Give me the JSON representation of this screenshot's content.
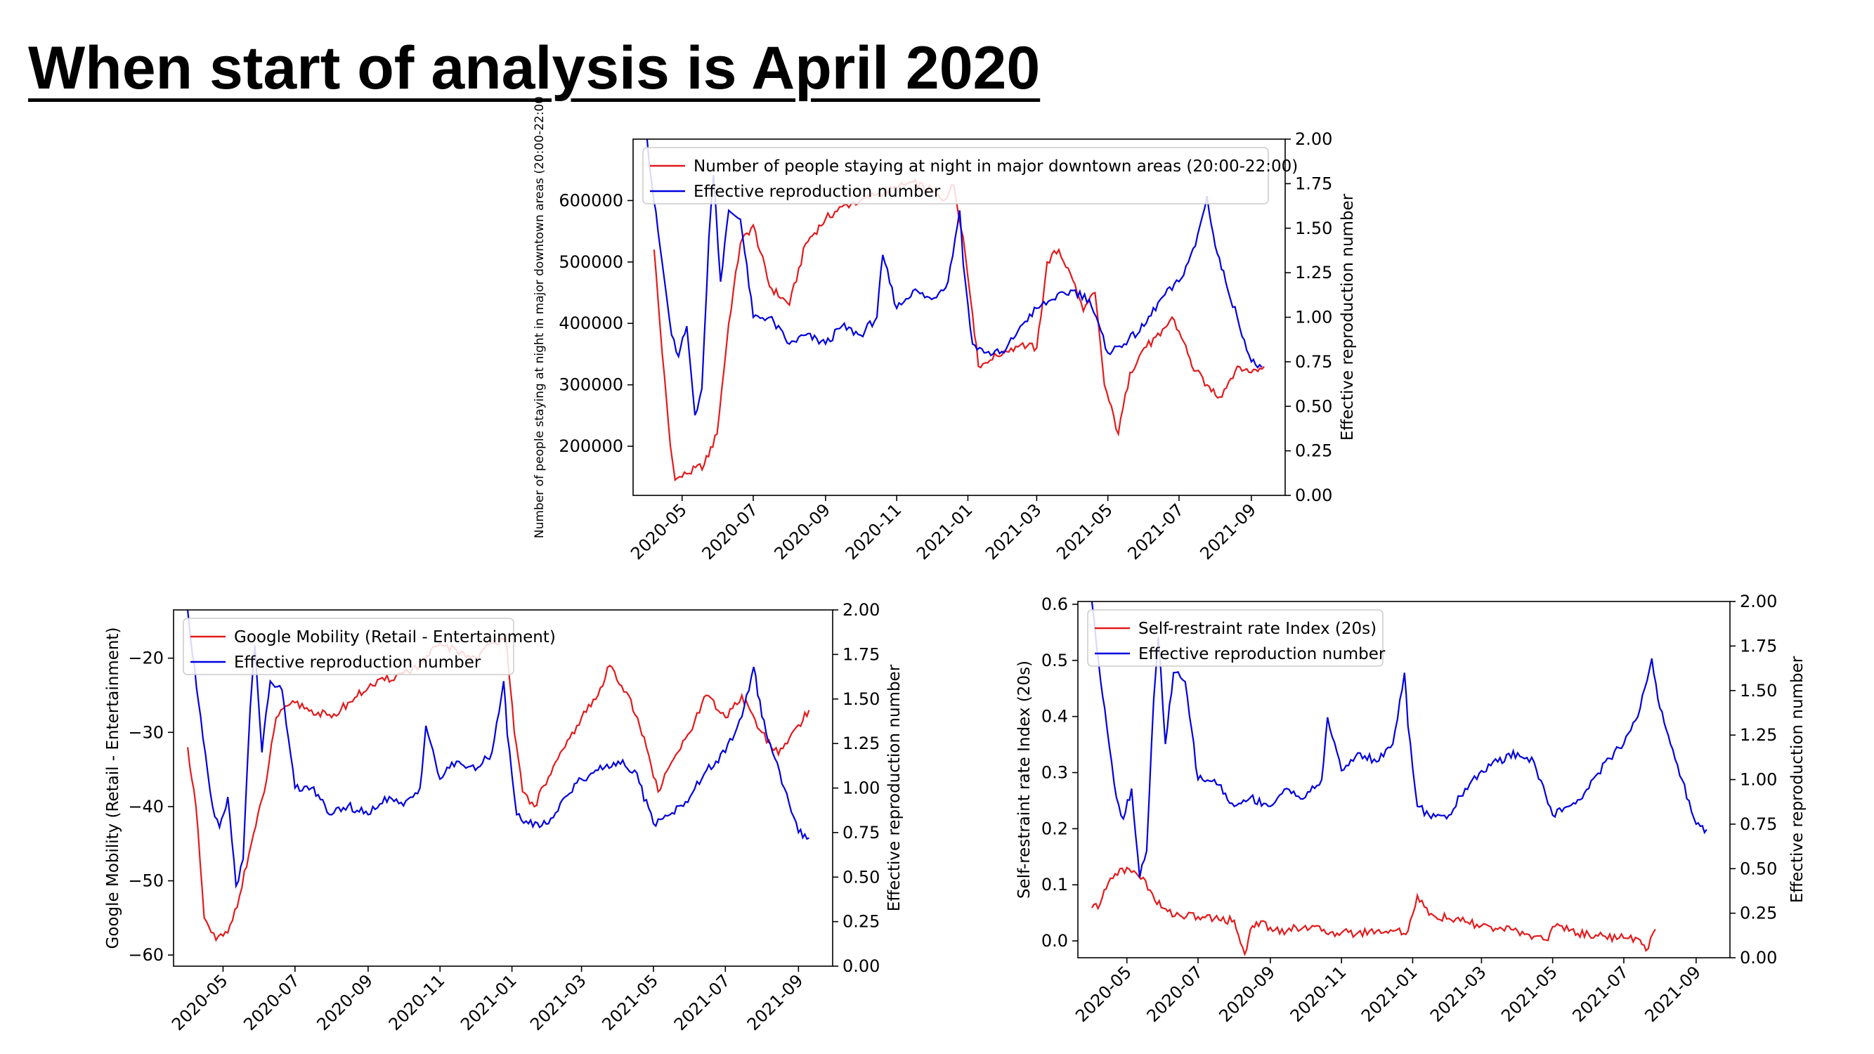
{
  "page": {
    "title": "When start of analysis is April 2020"
  },
  "charts": [
    {
      "id": "top",
      "type": "line",
      "x_ticks": [
        "2020-05",
        "2020-07",
        "2020-09",
        "2020-11",
        "2021-01",
        "2021-03",
        "2021-05",
        "2021-07",
        "2021-09"
      ],
      "x_range": [
        "2020-03-20",
        "2021-09-30"
      ],
      "left_axis": {
        "label": "Number of people staying at night in major downtown areas (20:00-22:00",
        "ticks": [
          200000,
          300000,
          400000,
          500000,
          600000
        ],
        "ylim": [
          120000,
          700000
        ]
      },
      "right_axis": {
        "label": "Effective reproduction number",
        "ticks": [
          "0.00",
          "0.25",
          "0.50",
          "0.75",
          "1.00",
          "1.25",
          "1.50",
          "1.75",
          "2.00"
        ],
        "ylim": [
          0,
          2.0
        ]
      },
      "legend": {
        "placement": "top-left",
        "entries": [
          "Number of people staying at night in major downtown areas (20:00-22:00)",
          "Effective reproduction number"
        ]
      },
      "series": [
        {
          "name": "Number of people staying at night in major downtown areas (20:00-22:00)",
          "axis": "left",
          "color": "#e31a1c",
          "x": [
            "2020-04-07",
            "2020-04-14",
            "2020-04-21",
            "2020-04-25",
            "2020-05-05",
            "2020-05-20",
            "2020-05-31",
            "2020-06-10",
            "2020-06-20",
            "2020-07-01",
            "2020-07-15",
            "2020-08-01",
            "2020-08-15",
            "2020-09-01",
            "2020-09-15",
            "2020-10-01",
            "2020-10-15",
            "2020-11-01",
            "2020-11-15",
            "2020-12-01",
            "2020-12-10",
            "2020-12-20",
            "2020-12-28",
            "2021-01-05",
            "2021-01-10",
            "2021-01-20",
            "2021-02-01",
            "2021-02-15",
            "2021-03-01",
            "2021-03-10",
            "2021-03-20",
            "2021-04-01",
            "2021-04-10",
            "2021-04-20",
            "2021-04-28",
            "2021-05-10",
            "2021-05-20",
            "2021-06-01",
            "2021-06-15",
            "2021-06-25",
            "2021-07-05",
            "2021-07-12",
            "2021-07-25",
            "2021-08-05",
            "2021-08-20",
            "2021-09-01",
            "2021-09-12"
          ],
          "y": [
            520000,
            350000,
            200000,
            145000,
            155000,
            170000,
            220000,
            400000,
            530000,
            560000,
            460000,
            430000,
            530000,
            570000,
            590000,
            600000,
            610000,
            620000,
            630000,
            615000,
            600000,
            625000,
            540000,
            415000,
            330000,
            340000,
            355000,
            365000,
            360000,
            500000,
            520000,
            470000,
            420000,
            450000,
            300000,
            220000,
            320000,
            360000,
            380000,
            410000,
            370000,
            330000,
            300000,
            280000,
            330000,
            320000,
            330000
          ]
        },
        {
          "name": "Effective reproduction number",
          "axis": "right",
          "color": "#0000e0",
          "x": [
            "2020-04-01",
            "2020-04-05",
            "2020-04-12",
            "2020-04-22",
            "2020-04-28",
            "2020-05-05",
            "2020-05-12",
            "2020-05-18",
            "2020-05-24",
            "2020-05-28",
            "2020-06-03",
            "2020-06-10",
            "2020-06-20",
            "2020-07-01",
            "2020-07-15",
            "2020-08-01",
            "2020-08-15",
            "2020-09-01",
            "2020-09-15",
            "2020-10-01",
            "2020-10-15",
            "2020-10-20",
            "2020-11-01",
            "2020-11-15",
            "2020-12-01",
            "2020-12-15",
            "2020-12-25",
            "2020-12-28",
            "2021-01-05",
            "2021-01-15",
            "2021-02-01",
            "2021-02-15",
            "2021-03-01",
            "2021-03-15",
            "2021-04-01",
            "2021-04-15",
            "2021-05-01",
            "2021-05-15",
            "2021-06-01",
            "2021-06-15",
            "2021-07-01",
            "2021-07-15",
            "2021-07-25",
            "2021-08-01",
            "2021-08-10",
            "2021-08-20",
            "2021-09-01",
            "2021-09-10"
          ],
          "y": [
            2.0,
            1.75,
            1.4,
            0.9,
            0.78,
            0.95,
            0.45,
            0.6,
            1.45,
            1.8,
            1.2,
            1.6,
            1.55,
            1.0,
            1.0,
            0.85,
            0.9,
            0.85,
            0.95,
            0.9,
            1.0,
            1.35,
            1.05,
            1.15,
            1.1,
            1.2,
            1.6,
            1.3,
            0.85,
            0.8,
            0.8,
            0.95,
            1.05,
            1.1,
            1.15,
            1.1,
            0.8,
            0.85,
            0.95,
            1.1,
            1.2,
            1.4,
            1.68,
            1.4,
            1.2,
            1.0,
            0.75,
            0.72
          ]
        }
      ]
    },
    {
      "id": "bottom-left",
      "type": "line",
      "x_ticks": [
        "2020-05",
        "2020-07",
        "2020-09",
        "2020-11",
        "2021-01",
        "2021-03",
        "2021-05",
        "2021-07",
        "2021-09"
      ],
      "x_range": [
        "2020-03-20",
        "2021-09-30"
      ],
      "left_axis": {
        "label": "Google Mobility (Retail - Entertainment)",
        "ticks": [
          "−60",
          "−50",
          "−40",
          "−30",
          "−20"
        ],
        "ylim": [
          -61.5,
          -13.5
        ]
      },
      "right_axis": {
        "label": "Effective reproduction number",
        "ticks": [
          "0.00",
          "0.25",
          "0.50",
          "0.75",
          "1.00",
          "1.25",
          "1.50",
          "1.75",
          "2.00"
        ],
        "ylim": [
          0,
          2.0
        ]
      },
      "legend": {
        "placement": "top-left",
        "entries": [
          "Google Mobility (Retail - Entertainment)",
          "Effective reproduction number"
        ]
      },
      "series": [
        {
          "name": "Google Mobility (Retail - Entertainment)",
          "axis": "left",
          "color": "#e31a1c",
          "x": [
            "2020-04-01",
            "2020-04-08",
            "2020-04-15",
            "2020-04-25",
            "2020-05-05",
            "2020-05-15",
            "2020-05-25",
            "2020-06-05",
            "2020-06-15",
            "2020-07-01",
            "2020-07-15",
            "2020-08-01",
            "2020-08-15",
            "2020-09-01",
            "2020-09-15",
            "2020-10-01",
            "2020-10-15",
            "2020-11-01",
            "2020-11-15",
            "2020-12-01",
            "2020-12-15",
            "2020-12-27",
            "2021-01-03",
            "2021-01-10",
            "2021-01-20",
            "2021-02-01",
            "2021-02-15",
            "2021-03-01",
            "2021-03-15",
            "2021-03-25",
            "2021-04-10",
            "2021-04-25",
            "2021-05-05",
            "2021-05-20",
            "2021-06-01",
            "2021-06-15",
            "2021-07-01",
            "2021-07-15",
            "2021-08-01",
            "2021-08-15",
            "2021-09-01",
            "2021-09-10"
          ],
          "y": [
            -32,
            -40,
            -55,
            -58,
            -57,
            -52,
            -45,
            -38,
            -28,
            -26,
            -27,
            -28,
            -26,
            -24,
            -23,
            -22,
            -21,
            -18,
            -19,
            -20,
            -18,
            -17,
            -30,
            -38,
            -40,
            -36,
            -32,
            -28,
            -25,
            -21,
            -25,
            -32,
            -38,
            -33,
            -30,
            -25,
            -28,
            -25,
            -30,
            -33,
            -29,
            -27
          ]
        },
        {
          "name": "Effective reproduction number",
          "axis": "right",
          "color": "#0000e0",
          "x": [
            "2020-04-01",
            "2020-04-05",
            "2020-04-12",
            "2020-04-22",
            "2020-04-28",
            "2020-05-05",
            "2020-05-12",
            "2020-05-18",
            "2020-05-24",
            "2020-05-28",
            "2020-06-03",
            "2020-06-10",
            "2020-06-20",
            "2020-07-01",
            "2020-07-15",
            "2020-08-01",
            "2020-08-15",
            "2020-09-01",
            "2020-09-15",
            "2020-10-01",
            "2020-10-15",
            "2020-10-20",
            "2020-11-01",
            "2020-11-15",
            "2020-12-01",
            "2020-12-15",
            "2020-12-25",
            "2020-12-28",
            "2021-01-05",
            "2021-01-15",
            "2021-02-01",
            "2021-02-15",
            "2021-03-01",
            "2021-03-15",
            "2021-04-01",
            "2021-04-15",
            "2021-05-01",
            "2021-05-15",
            "2021-06-01",
            "2021-06-15",
            "2021-07-01",
            "2021-07-15",
            "2021-07-25",
            "2021-08-01",
            "2021-08-10",
            "2021-08-20",
            "2021-09-01",
            "2021-09-10"
          ],
          "y": [
            2.0,
            1.75,
            1.4,
            0.9,
            0.78,
            0.95,
            0.45,
            0.6,
            1.45,
            1.8,
            1.2,
            1.6,
            1.55,
            1.0,
            1.0,
            0.85,
            0.9,
            0.85,
            0.95,
            0.9,
            1.0,
            1.35,
            1.05,
            1.15,
            1.1,
            1.2,
            1.6,
            1.3,
            0.85,
            0.8,
            0.8,
            0.95,
            1.05,
            1.1,
            1.15,
            1.1,
            0.8,
            0.85,
            0.95,
            1.1,
            1.2,
            1.4,
            1.68,
            1.4,
            1.2,
            1.0,
            0.75,
            0.72
          ]
        }
      ]
    },
    {
      "id": "bottom-right",
      "type": "line",
      "x_ticks": [
        "2020-05",
        "2020-07",
        "2020-09",
        "2020-11",
        "2021-01",
        "2021-03",
        "2021-05",
        "2021-07",
        "2021-09"
      ],
      "x_range": [
        "2020-03-20",
        "2021-09-30"
      ],
      "left_axis": {
        "label": "Self-restraint rate Index (20s)",
        "ticks": [
          "0.0",
          "0.1",
          "0.2",
          "0.3",
          "0.4",
          "0.5",
          "0.6"
        ],
        "ylim": [
          -0.03,
          0.605
        ]
      },
      "right_axis": {
        "label": "Effective reproduction number",
        "ticks": [
          "0.00",
          "0.25",
          "0.50",
          "0.75",
          "1.00",
          "1.25",
          "1.50",
          "1.75",
          "2.00"
        ],
        "ylim": [
          0,
          2.0
        ]
      },
      "legend": {
        "placement": "top-left",
        "entries": [
          "Self-restraint rate Index (20s)",
          "Effective reproduction number"
        ]
      },
      "series": [
        {
          "name": "Self-restraint rate Index (20s)",
          "axis": "right",
          "color": "#e31a1c",
          "x": [
            "2020-04-01",
            "2020-04-08",
            "2020-04-15",
            "2020-04-25",
            "2020-05-05",
            "2020-05-15",
            "2020-05-25",
            "2020-06-05",
            "2020-06-15",
            "2020-07-01",
            "2020-07-15",
            "2020-08-01",
            "2020-08-10",
            "2020-08-15",
            "2020-08-20",
            "2020-09-01",
            "2020-09-15",
            "2020-10-01",
            "2020-10-15",
            "2020-11-01",
            "2020-11-15",
            "2020-12-01",
            "2020-12-15",
            "2020-12-28",
            "2021-01-05",
            "2021-01-15",
            "2021-02-01",
            "2021-02-15",
            "2021-03-01",
            "2021-03-15",
            "2021-04-01",
            "2021-04-15",
            "2021-04-25",
            "2021-05-05",
            "2021-05-15",
            "2021-06-01",
            "2021-06-15",
            "2021-07-01",
            "2021-07-15",
            "2021-07-20",
            "2021-07-28"
          ],
          "y": [
            0.28,
            0.3,
            0.42,
            0.5,
            0.48,
            0.45,
            0.32,
            0.26,
            0.24,
            0.23,
            0.22,
            0.21,
            0.02,
            0.16,
            0.2,
            0.17,
            0.15,
            0.18,
            0.15,
            0.14,
            0.14,
            0.15,
            0.15,
            0.15,
            0.35,
            0.24,
            0.22,
            0.2,
            0.18,
            0.16,
            0.15,
            0.12,
            0.1,
            0.19,
            0.15,
            0.13,
            0.12,
            0.11,
            0.1,
            0.04,
            0.16
          ]
        },
        {
          "name": "Effective reproduction number",
          "axis": "right",
          "color": "#0000e0",
          "x": [
            "2020-04-01",
            "2020-04-05",
            "2020-04-12",
            "2020-04-22",
            "2020-04-28",
            "2020-05-05",
            "2020-05-12",
            "2020-05-18",
            "2020-05-24",
            "2020-05-28",
            "2020-06-03",
            "2020-06-10",
            "2020-06-20",
            "2020-07-01",
            "2020-07-15",
            "2020-08-01",
            "2020-08-15",
            "2020-09-01",
            "2020-09-15",
            "2020-10-01",
            "2020-10-15",
            "2020-10-20",
            "2020-11-01",
            "2020-11-15",
            "2020-12-01",
            "2020-12-15",
            "2020-12-25",
            "2020-12-28",
            "2021-01-05",
            "2021-01-15",
            "2021-02-01",
            "2021-02-15",
            "2021-03-01",
            "2021-03-15",
            "2021-04-01",
            "2021-04-15",
            "2021-05-01",
            "2021-05-15",
            "2021-06-01",
            "2021-06-15",
            "2021-07-01",
            "2021-07-15",
            "2021-07-25",
            "2021-08-01",
            "2021-08-10",
            "2021-08-20",
            "2021-09-01",
            "2021-09-10"
          ],
          "y": [
            2.0,
            1.75,
            1.4,
            0.9,
            0.78,
            0.95,
            0.45,
            0.6,
            1.45,
            1.8,
            1.2,
            1.6,
            1.55,
            1.0,
            1.0,
            0.85,
            0.9,
            0.85,
            0.95,
            0.9,
            1.0,
            1.35,
            1.05,
            1.15,
            1.1,
            1.2,
            1.6,
            1.3,
            0.85,
            0.8,
            0.8,
            0.95,
            1.05,
            1.1,
            1.15,
            1.1,
            0.8,
            0.85,
            0.95,
            1.1,
            1.2,
            1.4,
            1.68,
            1.4,
            1.2,
            1.0,
            0.75,
            0.72
          ]
        }
      ]
    }
  ]
}
